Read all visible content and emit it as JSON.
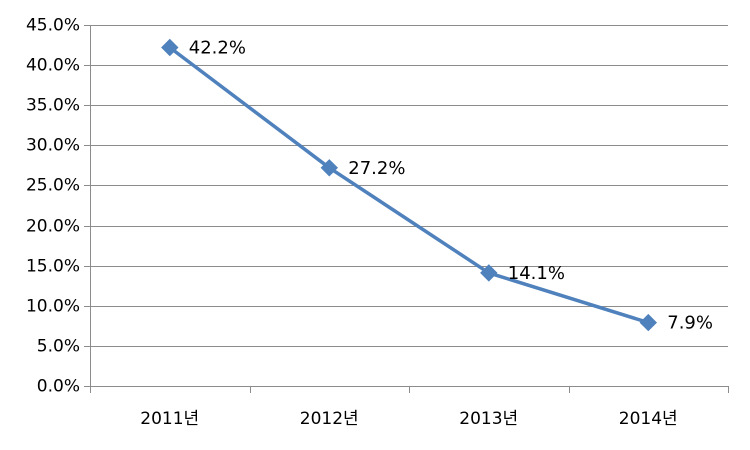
{
  "chart_data": {
    "type": "line",
    "categories": [
      "2011년",
      "2012년",
      "2013년",
      "2014년"
    ],
    "series": [
      {
        "values": [
          42.2,
          27.2,
          14.1,
          7.9
        ],
        "color": "#4f81bd",
        "marker": "diamond"
      }
    ],
    "data_labels": [
      "42.2%",
      "27.2%",
      "14.1%",
      "7.9%"
    ],
    "y_ticks": [
      0,
      5,
      10,
      15,
      20,
      25,
      30,
      35,
      40,
      45
    ],
    "y_tick_labels": [
      "0.0%",
      "5.0%",
      "10.0%",
      "15.0%",
      "20.0%",
      "25.0%",
      "30.0%",
      "35.0%",
      "40.0%",
      "45.0%"
    ],
    "ylim": [
      0,
      45
    ],
    "grid": true,
    "legend": "none",
    "title": "",
    "xlabel": "",
    "ylabel": ""
  }
}
